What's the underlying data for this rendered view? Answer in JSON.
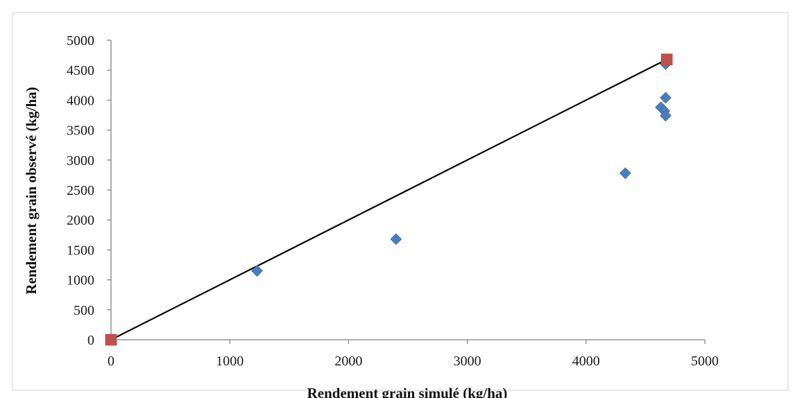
{
  "chart_data": {
    "type": "scatter",
    "title": "",
    "xlabel": "Rendement grain simulé (kg/ha)",
    "ylabel": "Rendement grain observé (kg/ha)",
    "xlim": [
      0,
      5000
    ],
    "ylim": [
      0,
      5000
    ],
    "x_ticks": [
      "0",
      "1000",
      "2000",
      "3000",
      "4000",
      "5000"
    ],
    "y_ticks": [
      "0",
      "500",
      "1000",
      "1500",
      "2000",
      "2500",
      "3000",
      "3500",
      "4000",
      "4500",
      "5000"
    ],
    "grid": false,
    "legend": "none",
    "series": [
      {
        "marker": "diamond",
        "color": "#4a7ebb",
        "points": [
          {
            "x": 1230,
            "y": 1150
          },
          {
            "x": 2400,
            "y": 1680
          },
          {
            "x": 4330,
            "y": 2780
          },
          {
            "x": 4630,
            "y": 3880
          },
          {
            "x": 4660,
            "y": 3820
          },
          {
            "x": 4670,
            "y": 3740
          },
          {
            "x": 4670,
            "y": 4040
          },
          {
            "x": 4670,
            "y": 4600
          }
        ]
      },
      {
        "marker": "square",
        "color": "#c0504d",
        "points": [
          {
            "x": 0,
            "y": 0
          },
          {
            "x": 4680,
            "y": 4680
          }
        ]
      },
      {
        "marker": "line",
        "color": "#000000",
        "points": [
          {
            "x": 0,
            "y": 0
          },
          {
            "x": 4680,
            "y": 4680
          }
        ]
      }
    ]
  }
}
